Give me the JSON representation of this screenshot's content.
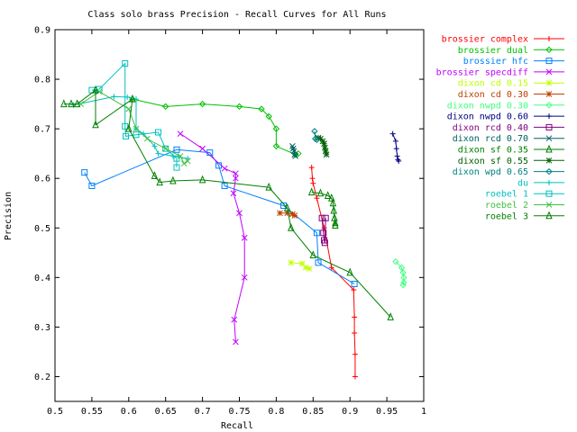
{
  "chart_data": {
    "type": "line",
    "title": "Class solo brass Precision - Recall Curves for All Runs",
    "xlabel": "Recall",
    "ylabel": "Precision",
    "xlim": [
      0.5,
      1
    ],
    "ylim": [
      0.15,
      0.9
    ],
    "xticks": [
      "0.5",
      "0.55",
      "0.6",
      "0.65",
      "0.7",
      "0.75",
      "0.8",
      "0.85",
      "0.9",
      "0.95",
      "1"
    ],
    "yticks": [
      "0.2",
      "0.3",
      "0.4",
      "0.5",
      "0.6",
      "0.7",
      "0.8",
      "0.9"
    ],
    "grid": false,
    "legend_position": "right, outside plot",
    "series": [
      {
        "name": "brossier complex",
        "color": "#ff0000",
        "marker": "plus",
        "points": [
          [
            0.848,
            0.622
          ],
          [
            0.849,
            0.6
          ],
          [
            0.85,
            0.59
          ],
          [
            0.855,
            0.56
          ],
          [
            0.865,
            0.5
          ],
          [
            0.875,
            0.42
          ],
          [
            0.905,
            0.375
          ],
          [
            0.906,
            0.32
          ],
          [
            0.906,
            0.288
          ],
          [
            0.907,
            0.245
          ],
          [
            0.907,
            0.2
          ]
        ]
      },
      {
        "name": "brossier dual",
        "color": "#00c000",
        "marker": "cross",
        "points": [
          [
            0.605,
            0.76
          ],
          [
            0.65,
            0.745
          ],
          [
            0.7,
            0.75
          ],
          [
            0.75,
            0.745
          ],
          [
            0.78,
            0.74
          ],
          [
            0.79,
            0.725
          ],
          [
            0.8,
            0.7
          ],
          [
            0.8,
            0.665
          ],
          [
            0.826,
            0.648
          ],
          [
            0.83,
            0.65
          ]
        ]
      },
      {
        "name": "brossier hfc",
        "color": "#0080ff",
        "marker": "square",
        "points": [
          [
            0.54,
            0.612
          ],
          [
            0.55,
            0.585
          ],
          [
            0.665,
            0.658
          ],
          [
            0.71,
            0.652
          ],
          [
            0.722,
            0.626
          ],
          [
            0.73,
            0.585
          ],
          [
            0.81,
            0.545
          ],
          [
            0.855,
            0.49
          ],
          [
            0.857,
            0.43
          ],
          [
            0.906,
            0.387
          ]
        ]
      },
      {
        "name": "brossier specdiff",
        "color": "#c000ff",
        "marker": "x",
        "points": [
          [
            0.67,
            0.69
          ],
          [
            0.7,
            0.66
          ],
          [
            0.73,
            0.62
          ],
          [
            0.745,
            0.61
          ],
          [
            0.745,
            0.6
          ],
          [
            0.742,
            0.57
          ],
          [
            0.75,
            0.53
          ],
          [
            0.757,
            0.48
          ],
          [
            0.757,
            0.4
          ],
          [
            0.743,
            0.315
          ],
          [
            0.745,
            0.27
          ]
        ]
      },
      {
        "name": "dixon cd 0.15",
        "color": "#c0ff00",
        "marker": "star",
        "points": [
          [
            0.82,
            0.43
          ],
          [
            0.835,
            0.428
          ],
          [
            0.84,
            0.42
          ],
          [
            0.845,
            0.418
          ]
        ]
      },
      {
        "name": "dixon cd 0.30",
        "color": "#c04000",
        "marker": "star",
        "points": [
          [
            0.805,
            0.53
          ],
          [
            0.815,
            0.53
          ],
          [
            0.822,
            0.528
          ],
          [
            0.825,
            0.525
          ]
        ]
      },
      {
        "name": "dixon nwpd 0.30",
        "color": "#40ff80",
        "marker": "diamond",
        "points": [
          [
            0.962,
            0.432
          ],
          [
            0.97,
            0.42
          ],
          [
            0.972,
            0.41
          ],
          [
            0.973,
            0.4
          ],
          [
            0.973,
            0.39
          ],
          [
            0.972,
            0.385
          ]
        ]
      },
      {
        "name": "dixon nwpd 0.60",
        "color": "#000080",
        "marker": "plus",
        "points": [
          [
            0.958,
            0.69
          ],
          [
            0.962,
            0.675
          ],
          [
            0.963,
            0.66
          ],
          [
            0.964,
            0.645
          ],
          [
            0.965,
            0.638
          ],
          [
            0.966,
            0.635
          ]
        ]
      },
      {
        "name": "dixon rcd 0.40",
        "color": "#800080",
        "marker": "square",
        "points": [
          [
            0.862,
            0.52
          ],
          [
            0.864,
            0.49
          ],
          [
            0.865,
            0.475
          ],
          [
            0.866,
            0.47
          ],
          [
            0.867,
            0.52
          ]
        ]
      },
      {
        "name": "dixon rcd 0.70",
        "color": "#006060",
        "marker": "x",
        "points": [
          [
            0.822,
            0.665
          ],
          [
            0.823,
            0.66
          ],
          [
            0.824,
            0.655
          ],
          [
            0.825,
            0.648
          ],
          [
            0.826,
            0.645
          ]
        ]
      },
      {
        "name": "dixon sf 0.35",
        "color": "#008000",
        "marker": "triangle",
        "points": [
          [
            0.848,
            0.572
          ],
          [
            0.86,
            0.57
          ],
          [
            0.87,
            0.565
          ],
          [
            0.875,
            0.56
          ],
          [
            0.877,
            0.55
          ],
          [
            0.878,
            0.535
          ],
          [
            0.879,
            0.52
          ],
          [
            0.88,
            0.51
          ],
          [
            0.88,
            0.505
          ]
        ]
      },
      {
        "name": "dixon sf 0.55",
        "color": "#006000",
        "marker": "star",
        "points": [
          [
            0.857,
            0.682
          ],
          [
            0.86,
            0.68
          ],
          [
            0.863,
            0.675
          ],
          [
            0.865,
            0.67
          ],
          [
            0.866,
            0.662
          ],
          [
            0.867,
            0.655
          ],
          [
            0.868,
            0.648
          ]
        ]
      },
      {
        "name": "dixon wpd 0.65",
        "color": "#008080",
        "marker": "diamond",
        "points": [
          [
            0.852,
            0.695
          ],
          [
            0.853,
            0.68
          ],
          [
            0.855,
            0.678
          ]
        ]
      },
      {
        "name": "du",
        "color": "#00c0c0",
        "marker": "plus",
        "points": [
          [
            0.525,
            0.748
          ],
          [
            0.58,
            0.765
          ],
          [
            0.598,
            0.764
          ],
          [
            0.61,
            0.76
          ],
          [
            0.61,
            0.7
          ],
          [
            0.62,
            0.69
          ],
          [
            0.635,
            0.665
          ],
          [
            0.64,
            0.65
          ],
          [
            0.66,
            0.645
          ],
          [
            0.68,
            0.64
          ]
        ]
      },
      {
        "name": "roebel 1",
        "color": "#00c0c0",
        "marker": "square",
        "points": [
          [
            0.55,
            0.778
          ],
          [
            0.56,
            0.78
          ],
          [
            0.595,
            0.832
          ],
          [
            0.595,
            0.705
          ],
          [
            0.596,
            0.685
          ],
          [
            0.61,
            0.688
          ],
          [
            0.64,
            0.693
          ],
          [
            0.65,
            0.66
          ],
          [
            0.665,
            0.64
          ],
          [
            0.665,
            0.622
          ]
        ]
      },
      {
        "name": "roebel 2",
        "color": "#40c040",
        "marker": "x",
        "points": [
          [
            0.535,
            0.75
          ],
          [
            0.56,
            0.775
          ],
          [
            0.6,
            0.74
          ],
          [
            0.61,
            0.7
          ],
          [
            0.625,
            0.68
          ],
          [
            0.65,
            0.66
          ],
          [
            0.67,
            0.645
          ],
          [
            0.675,
            0.63
          ],
          [
            0.68,
            0.635
          ]
        ]
      },
      {
        "name": "roebel 3",
        "color": "#008000",
        "marker": "triangle",
        "points": [
          [
            0.512,
            0.75
          ],
          [
            0.522,
            0.75
          ],
          [
            0.53,
            0.75
          ],
          [
            0.555,
            0.778
          ],
          [
            0.555,
            0.708
          ],
          [
            0.605,
            0.76
          ],
          [
            0.6,
            0.7
          ],
          [
            0.635,
            0.605
          ],
          [
            0.642,
            0.592
          ],
          [
            0.66,
            0.595
          ],
          [
            0.7,
            0.597
          ],
          [
            0.79,
            0.582
          ],
          [
            0.815,
            0.54
          ],
          [
            0.82,
            0.5
          ],
          [
            0.85,
            0.445
          ],
          [
            0.9,
            0.41
          ],
          [
            0.955,
            0.32
          ]
        ]
      }
    ]
  }
}
